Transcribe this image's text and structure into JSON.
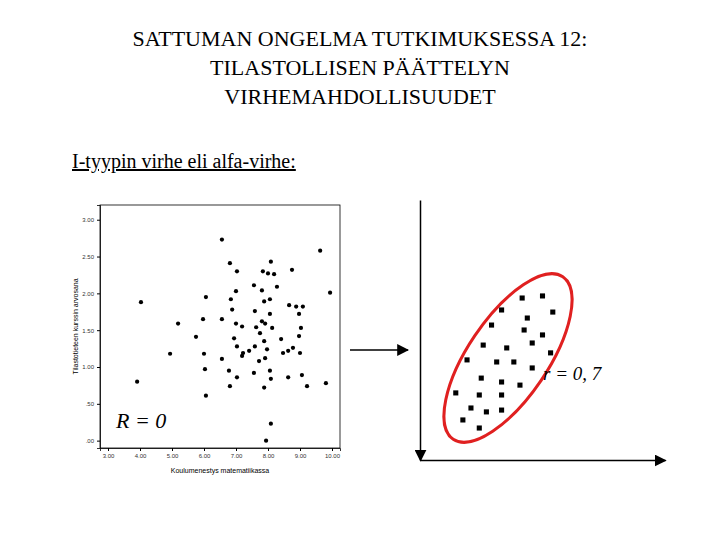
{
  "slide": {
    "title": [
      "SATTUMAN ONGELMA TUTKIMUKSESSA 12:",
      "TILASTOLLISEN PÄÄTTELYN",
      "VIRHEMAHDOLLISUUDET"
    ],
    "heading": "I-tyypin virhe eli alfa-virhe:"
  },
  "chart_data": [
    {
      "type": "scatter",
      "x_label": "Koulumenestys matematiikassa",
      "y_label": "Tilastotieteen kurssin arvosana",
      "annotation": "R = 0",
      "color": "#000000",
      "marker": "circle",
      "xlim": [
        2.75,
        10.25
      ],
      "ylim": [
        -0.1,
        3.2
      ],
      "xticks": [
        {
          "value": 3,
          "label": "3.00"
        },
        {
          "value": 4,
          "label": "4.00"
        },
        {
          "value": 5,
          "label": "5.00"
        },
        {
          "value": 6,
          "label": "6.00"
        },
        {
          "value": 7,
          "label": "7.00"
        },
        {
          "value": 8,
          "label": "8.00"
        },
        {
          "value": 9,
          "label": "9.00"
        },
        {
          "value": 10,
          "label": "10.00"
        }
      ],
      "yticks": [
        {
          "value": 0,
          "label": ".00"
        },
        {
          "value": 0.5,
          "label": ".50"
        },
        {
          "value": 1,
          "label": "1.00"
        },
        {
          "value": 1.5,
          "label": "1.50"
        },
        {
          "value": 2,
          "label": "2.00"
        },
        {
          "value": 2.5,
          "label": "2.50"
        },
        {
          "value": 3,
          "label": "3.00"
        }
      ],
      "x": [
        6.56,
        9.63,
        6.81,
        8.09,
        7.03,
        7.84,
        8.0,
        8.19,
        8.75,
        7.56,
        8.28,
        7.81,
        7.0,
        9.94,
        6.06,
        6.84,
        8.06,
        4.03,
        7.88,
        8.66,
        8.88,
        9.09,
        7.59,
        6.88,
        8.97,
        8.06,
        6.56,
        7.81,
        5.19,
        5.97,
        7.0,
        7.91,
        7.19,
        7.63,
        8.13,
        9.03,
        7.75,
        8.97,
        5.75,
        6.94,
        8.41,
        7.88,
        7.03,
        7.59,
        7.97,
        8.63,
        7.41,
        8.47,
        9.0,
        8.78,
        4.94,
        6.0,
        7.19,
        7.91,
        6.78,
        7.56,
        8.06,
        9.06,
        6.03,
        7.03,
        8.09,
        8.63,
        9.81,
        3.91,
        6.81,
        7.88,
        9.22,
        6.06,
        8.09,
        7.94,
        7.22,
        7.72,
        6.56
      ],
      "values": [
        2.73,
        2.58,
        2.41,
        2.43,
        2.3,
        2.3,
        2.27,
        2.26,
        2.32,
        2.11,
        2.09,
        2.04,
        2.03,
        2.01,
        1.95,
        1.92,
        1.92,
        1.88,
        1.89,
        1.84,
        1.82,
        1.82,
        1.76,
        1.78,
        1.72,
        1.72,
        1.65,
        1.62,
        1.59,
        1.65,
        1.59,
        1.59,
        1.55,
        1.54,
        1.53,
        1.53,
        1.46,
        1.42,
        1.41,
        1.39,
        1.38,
        1.35,
        1.28,
        1.28,
        1.24,
        1.22,
        1.22,
        1.19,
        1.19,
        1.26,
        1.18,
        1.18,
        1.15,
        1.12,
        0.95,
        0.92,
        0.95,
        0.89,
        0.97,
        0.86,
        0.84,
        0.86,
        0.78,
        0.8,
        0.74,
        0.72,
        0.74,
        0.61,
        0.23,
        0.0,
        1.19,
        1.08,
        1.11
      ]
    },
    {
      "type": "scatter",
      "annotation": "r = 0, 7",
      "color": "#000000",
      "marker": "square",
      "tick_labels": false,
      "xlim": [
        0,
        10
      ],
      "ylim": [
        0,
        10
      ],
      "x": [
        4.17,
        5.0,
        3.33,
        4.38,
        5.42,
        2.92,
        4.25,
        5.0,
        2.58,
        3.54,
        4.58,
        5.33,
        1.92,
        3.13,
        3.83,
        4.58,
        2.5,
        3.33,
        4.08,
        1.46,
        2.42,
        3.33,
        2.08,
        2.71,
        1.75,
        2.42,
        3.33
      ],
      "values": [
        6.23,
        6.31,
        5.77,
        5.46,
        5.69,
        5.19,
        5.0,
        4.81,
        4.42,
        4.31,
        4.5,
        4.12,
        3.85,
        3.77,
        3.77,
        3.54,
        3.15,
        3.0,
        2.88,
        2.58,
        2.5,
        2.5,
        2.0,
        1.85,
        1.54,
        1.23,
        1.92
      ]
    }
  ]
}
